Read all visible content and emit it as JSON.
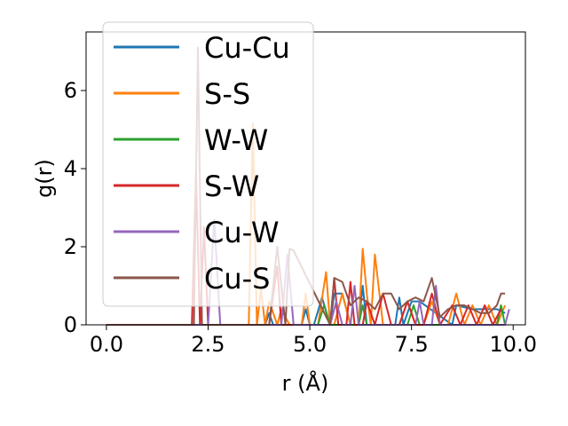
{
  "chart_data": {
    "type": "line",
    "title": "",
    "xlabel": "r (Å)",
    "ylabel": "g(r)",
    "xlim": [
      -0.5,
      10.3
    ],
    "ylim": [
      0,
      7.5
    ],
    "xticks": [
      0.0,
      2.5,
      5.0,
      7.5,
      10.0
    ],
    "xtick_labels": [
      "0.0",
      "2.5",
      "5.0",
      "7.5",
      "10.0"
    ],
    "yticks": [
      0,
      2,
      4,
      6
    ],
    "ytick_labels": [
      "0",
      "2",
      "4",
      "6"
    ],
    "grid": false,
    "legend_position": "upper-left",
    "series": [
      {
        "name": "Cu-Cu",
        "color": "#1f77b4",
        "x": [
          0,
          2.0,
          3.9,
          4.0,
          4.1,
          4.8,
          4.9,
          5.0,
          5.1,
          5.3,
          5.5,
          5.6,
          5.8,
          6.0,
          6.2,
          6.3,
          6.4,
          6.6,
          7.1,
          7.2,
          7.3,
          7.5,
          7.7,
          8.5,
          8.6,
          9.0,
          9.2,
          9.6,
          9.8
        ],
        "y": [
          0,
          0,
          0,
          0.3,
          0,
          0,
          0.4,
          0,
          0,
          0.7,
          0,
          0.8,
          0.8,
          0,
          0,
          1.0,
          0,
          0,
          0,
          0.7,
          0,
          0.6,
          0.6,
          0,
          0.5,
          0.4,
          0.4,
          0.4,
          0.3
        ]
      },
      {
        "name": "S-S",
        "color": "#ff7f0e",
        "x": [
          0,
          3.5,
          3.6,
          3.7,
          3.8,
          3.9,
          4.0,
          4.2,
          4.3,
          4.5,
          4.8,
          4.9,
          5.0,
          5.2,
          5.4,
          5.5,
          5.6,
          5.8,
          6.0,
          6.2,
          6.3,
          6.4,
          6.5,
          6.6,
          6.8,
          7.0,
          7.2,
          7.4,
          7.6,
          7.8,
          8.0,
          8.2,
          8.4,
          8.6,
          8.8,
          9.0,
          9.2,
          9.4,
          9.6,
          9.8
        ],
        "y": [
          0,
          0,
          5.15,
          0,
          0.9,
          0,
          0.6,
          0,
          0.4,
          0,
          0,
          0.8,
          0,
          0,
          1.35,
          0,
          0,
          0.8,
          0,
          0,
          1.95,
          0.8,
          0,
          1.8,
          0,
          0,
          0,
          0.6,
          0,
          0,
          0.6,
          0,
          0,
          0.8,
          0,
          0.5,
          0,
          0.5,
          0,
          0.5
        ]
      },
      {
        "name": "W-W",
        "color": "#2ca02c",
        "x": [
          0,
          5.2,
          5.35,
          5.5,
          6.2,
          6.3,
          6.4,
          7.4,
          7.55,
          7.7,
          9.6,
          9.7,
          9.8
        ],
        "y": [
          0,
          0,
          0.5,
          0,
          0,
          0.5,
          0,
          0,
          0.5,
          0,
          0,
          0.5,
          0
        ]
      },
      {
        "name": "S-W",
        "color": "#d62728",
        "x": [
          0,
          2.1,
          2.2,
          2.3,
          2.4,
          2.5,
          4.0,
          4.2,
          4.3,
          4.5,
          5.5,
          5.6,
          5.7,
          5.9,
          6.0,
          6.1,
          6.3,
          6.4,
          6.6,
          6.8,
          7.0,
          7.2,
          7.4,
          7.6,
          7.8,
          8.0,
          8.2,
          8.5,
          8.7,
          8.9,
          9.1,
          9.3,
          9.5,
          9.7
        ],
        "y": [
          0,
          0,
          3.9,
          0,
          2.5,
          0,
          0,
          1.5,
          0,
          0,
          0,
          1.2,
          0,
          0,
          1.1,
          0,
          0,
          0.6,
          0,
          0.8,
          0,
          0,
          0.6,
          0,
          0,
          0.8,
          0,
          0.5,
          0,
          0.5,
          0,
          0.5,
          0,
          0.4
        ]
      },
      {
        "name": "Cu-W",
        "color": "#9467bd",
        "x": [
          0,
          2.5,
          2.65,
          2.8,
          4.3,
          4.45,
          4.6,
          5.5,
          5.65,
          5.8,
          6.0,
          6.1,
          6.2,
          7.6,
          7.7,
          7.8,
          8.0,
          8.1,
          8.2,
          9.8,
          9.9
        ],
        "y": [
          0,
          0,
          2.7,
          0,
          0,
          1.8,
          0,
          0,
          0.6,
          0,
          0,
          1.0,
          0,
          0,
          0.6,
          0,
          0,
          1.0,
          0,
          0,
          0.4
        ]
      },
      {
        "name": "Cu-S",
        "color": "#8c564b",
        "x": [
          0,
          2.15,
          2.25,
          2.35,
          4.0,
          4.2,
          4.4,
          4.5,
          4.6,
          5.5,
          5.6,
          5.8,
          6.0,
          6.2,
          6.4,
          6.6,
          6.8,
          7.0,
          7.2,
          7.4,
          7.6,
          7.8,
          8.0,
          8.2,
          8.4,
          8.6,
          8.8,
          9.0,
          9.2,
          9.4,
          9.6,
          9.7,
          9.8
        ],
        "y": [
          0,
          0,
          7.1,
          0,
          0,
          2.0,
          0,
          1.95,
          1.9,
          0,
          1.2,
          1.1,
          0.5,
          0.7,
          0.6,
          0.4,
          0.8,
          0.8,
          0.4,
          0.6,
          0.7,
          0.6,
          1.2,
          0.2,
          0.4,
          0.5,
          0.5,
          0.4,
          0.3,
          0.3,
          0.5,
          0.8,
          0.8
        ]
      }
    ]
  }
}
